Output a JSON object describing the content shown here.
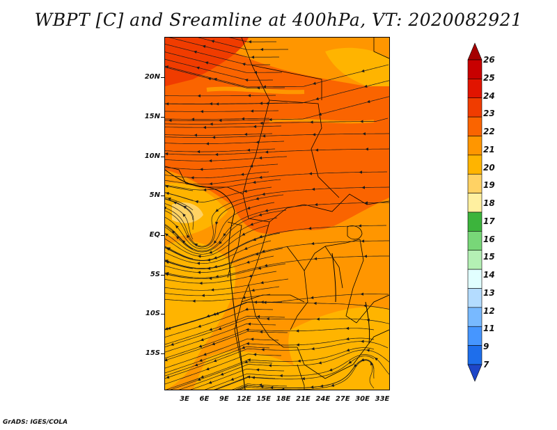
{
  "title": "WBPT [C] and Sreamline at 400hPa, VT: 2020082921",
  "credit": "GrADS: IGES/COLA",
  "lat_ticks": [
    "20N",
    "15N",
    "10N",
    "5N",
    "EQ",
    "5S",
    "10S",
    "15S"
  ],
  "lon_ticks": [
    "3E",
    "6E",
    "9E",
    "12E",
    "15E",
    "18E",
    "21E",
    "24E",
    "27E",
    "30E",
    "33E"
  ],
  "colorbar": {
    "labels": [
      "26",
      "25",
      "24",
      "23",
      "22",
      "21",
      "20",
      "19",
      "18",
      "17",
      "16",
      "15",
      "14",
      "13",
      "12",
      "11",
      "9",
      "7"
    ],
    "colors": [
      "#a50000",
      "#c80000",
      "#e11400",
      "#f03c00",
      "#fa6400",
      "#ff9600",
      "#ffb400",
      "#ffd264",
      "#fff0a0",
      "#3cb43c",
      "#78d778",
      "#b4f0b4",
      "#e1ffff",
      "#b4dcff",
      "#78b9ff",
      "#4696ff",
      "#1e6eeb",
      "#1e46c8"
    ]
  },
  "field_colors": {
    "c20": "#ffb400",
    "c21": "#ff9600",
    "c22": "#fa6400",
    "c19": "#ffd264"
  }
}
